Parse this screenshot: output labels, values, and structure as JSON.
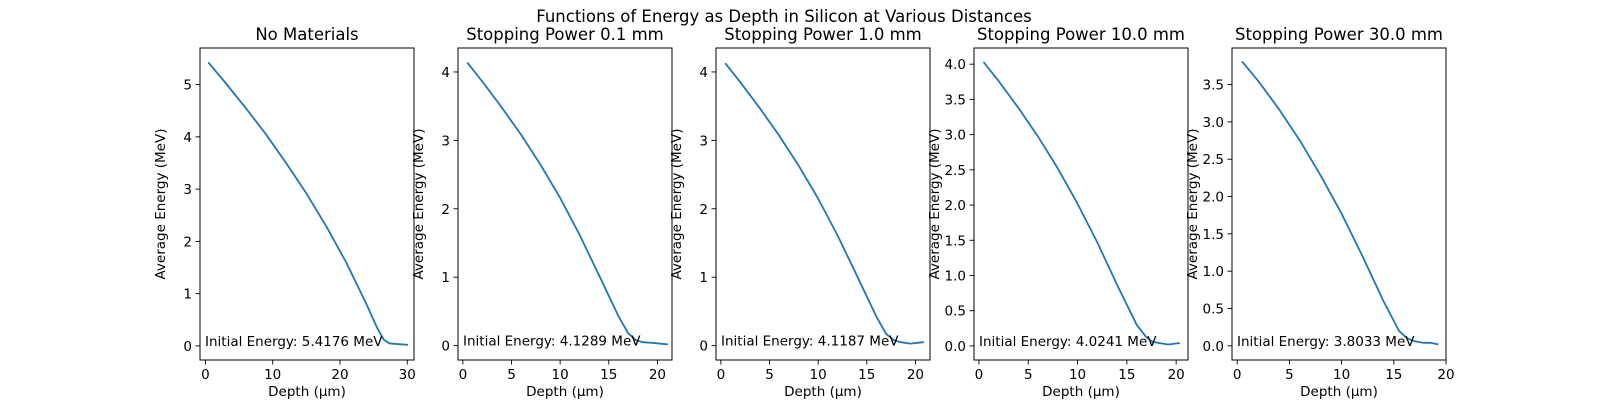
{
  "figure": {
    "suptitle": "Functions of Energy as Depth in Silicon at Various Distances"
  },
  "chart_data": [
    {
      "type": "line",
      "title": "No Materials",
      "xlabel": "Depth (μm)",
      "ylabel": "Average Energy (MeV)",
      "xlim": [
        -0.8,
        31.0
      ],
      "ylim": [
        -0.27,
        5.7
      ],
      "xticks": [
        0,
        10,
        20,
        30
      ],
      "yticks": [
        0,
        1,
        2,
        3,
        4,
        5
      ],
      "ytick_decimals": 0,
      "annotation": "Initial Energy: 5.4176 MeV",
      "grid": false,
      "color": "#1f77b4",
      "x": [
        0.5,
        3,
        6,
        9,
        12,
        15,
        18,
        21,
        24,
        25.5,
        26.5,
        27.3,
        28,
        30
      ],
      "y": [
        5.4176,
        5.03,
        4.55,
        4.05,
        3.5,
        2.92,
        2.28,
        1.58,
        0.78,
        0.35,
        0.12,
        0.05,
        0.04,
        0.02
      ]
    },
    {
      "type": "line",
      "title": "Stopping Power 0.1 mm",
      "xlabel": "Depth (μm)",
      "ylabel": "Average Energy (MeV)",
      "xlim": [
        -0.5,
        21.5
      ],
      "ylim": [
        -0.21,
        4.35
      ],
      "xticks": [
        0,
        5,
        10,
        15,
        20
      ],
      "yticks": [
        0,
        1,
        2,
        3,
        4
      ],
      "ytick_decimals": 0,
      "annotation": "Initial Energy: 4.1289 MeV",
      "grid": false,
      "color": "#1f77b4",
      "x": [
        0.5,
        2,
        4,
        6,
        8,
        10,
        12,
        14,
        16,
        17,
        17.8,
        18.5,
        19.5,
        21
      ],
      "y": [
        4.1289,
        3.86,
        3.48,
        3.08,
        2.64,
        2.16,
        1.62,
        1.03,
        0.43,
        0.18,
        0.08,
        0.05,
        0.04,
        0.02
      ]
    },
    {
      "type": "line",
      "title": "Stopping Power 1.0 mm",
      "xlabel": "Depth (μm)",
      "ylabel": "Average Energy (MeV)",
      "xlim": [
        -0.5,
        21.5
      ],
      "ylim": [
        -0.21,
        4.35
      ],
      "xticks": [
        0,
        5,
        10,
        15,
        20
      ],
      "yticks": [
        0,
        1,
        2,
        3,
        4
      ],
      "ytick_decimals": 0,
      "annotation": "Initial Energy: 4.1187 MeV",
      "grid": false,
      "color": "#1f77b4",
      "x": [
        0.5,
        2,
        4,
        6,
        8,
        10,
        12,
        14,
        16,
        17,
        17.8,
        18.5,
        19.5,
        20.8
      ],
      "y": [
        4.1187,
        3.85,
        3.47,
        3.07,
        2.63,
        2.15,
        1.61,
        1.02,
        0.42,
        0.17,
        0.08,
        0.05,
        0.03,
        0.05
      ]
    },
    {
      "type": "line",
      "title": "Stopping Power 10.0 mm",
      "xlabel": "Depth (μm)",
      "ylabel": "Average Energy (MeV)",
      "xlim": [
        -0.5,
        21.2
      ],
      "ylim": [
        -0.2,
        4.23
      ],
      "xticks": [
        0,
        5,
        10,
        15,
        20
      ],
      "yticks": [
        0,
        0.5,
        1,
        1.5,
        2,
        2.5,
        3,
        3.5,
        4
      ],
      "ytick_decimals": 1,
      "annotation": "Initial Energy: 4.0241 MeV",
      "grid": false,
      "color": "#1f77b4",
      "x": [
        0.5,
        2,
        4,
        6,
        8,
        10,
        12,
        14,
        16,
        17,
        17.6,
        18.3,
        19.2,
        20.3
      ],
      "y": [
        4.0241,
        3.76,
        3.38,
        2.97,
        2.52,
        2.02,
        1.47,
        0.87,
        0.3,
        0.12,
        0.06,
        0.04,
        0.02,
        0.04
      ]
    },
    {
      "type": "line",
      "title": "Stopping Power 30.0 mm",
      "xlabel": "Depth (μm)",
      "ylabel": "Average Energy (MeV)",
      "xlim": [
        -0.5,
        20.0
      ],
      "ylim": [
        -0.19,
        3.99
      ],
      "xticks": [
        0,
        5,
        10,
        15,
        20
      ],
      "yticks": [
        0,
        0.5,
        1,
        1.5,
        2,
        2.5,
        3,
        3.5
      ],
      "ytick_decimals": 1,
      "annotation": "Initial Energy: 3.8033 MeV",
      "grid": false,
      "color": "#1f77b4",
      "x": [
        0.5,
        2,
        4,
        6,
        8,
        10,
        12,
        14,
        15.5,
        16.3,
        17,
        17.8,
        18.5,
        19.2
      ],
      "y": [
        3.8033,
        3.55,
        3.17,
        2.75,
        2.28,
        1.77,
        1.2,
        0.6,
        0.2,
        0.1,
        0.06,
        0.04,
        0.04,
        0.02
      ]
    }
  ]
}
